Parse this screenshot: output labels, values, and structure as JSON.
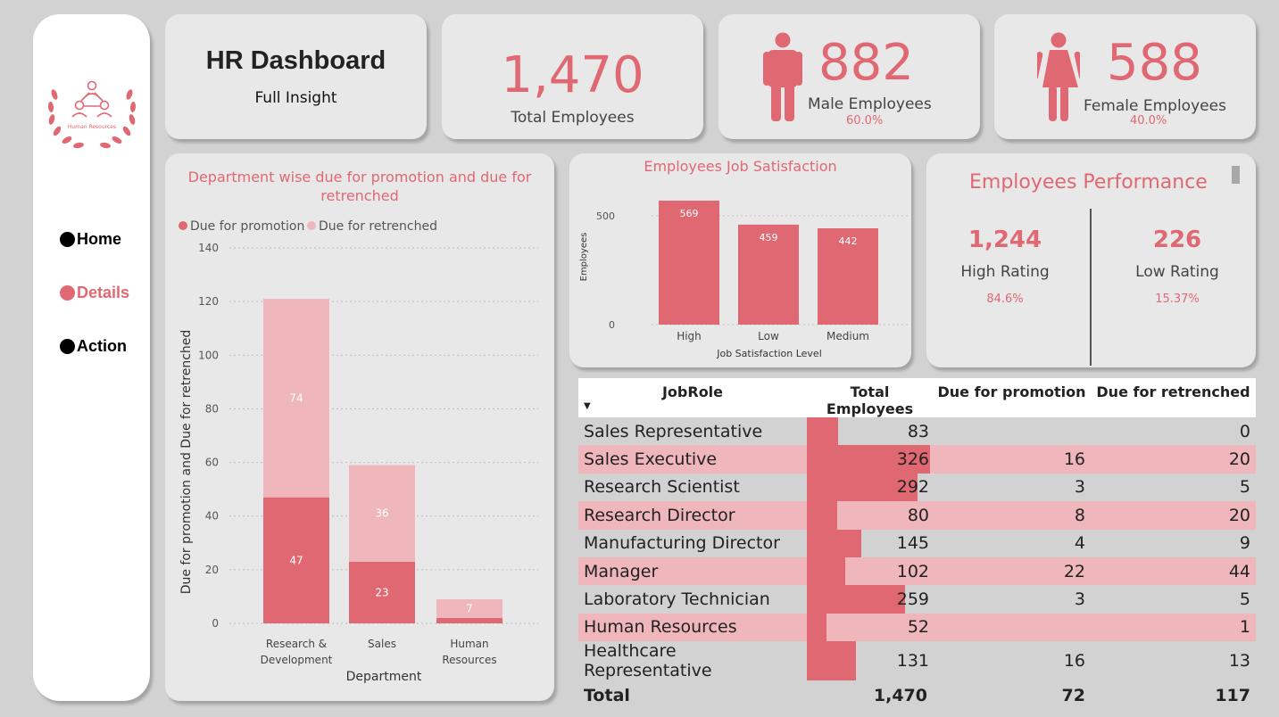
{
  "sidebar": {
    "logo_text": "Human Resources",
    "nav": [
      {
        "label": "Home",
        "color": "#000000"
      },
      {
        "label": "Details",
        "color": "#e06872"
      },
      {
        "label": "Action",
        "color": "#000000"
      }
    ]
  },
  "header": {
    "title": "HR Dashboard",
    "subtitle": "Full Insight"
  },
  "kpis": {
    "total": {
      "value": "1,470",
      "label": "Total Employees"
    },
    "male": {
      "value": "882",
      "label": "Male Employees",
      "pct": "60.0%"
    },
    "female": {
      "value": "588",
      "label": "Female Employees",
      "pct": "40.0%"
    }
  },
  "colors": {
    "accent": "#e06872",
    "light_accent": "#efb6bb",
    "card": "#e8e8e8",
    "background": "#d2d2d2"
  },
  "dept_chart": {
    "title_line1": "Department wise due for promotion and due for",
    "title_line2": "retrenched",
    "legend": [
      "Due for promotion",
      "Due for retrenched"
    ],
    "ylabel": "Due for promotion and Due for retrenched",
    "xlabel": "Department",
    "yticks": [
      "0",
      "20",
      "40",
      "60",
      "80",
      "100",
      "120",
      "140"
    ],
    "cat_lines": [
      [
        "Research &",
        "Development"
      ],
      [
        "Sales",
        ""
      ],
      [
        "Human",
        "Resources"
      ]
    ]
  },
  "satisfaction_chart": {
    "title": "Employees Job Satisfaction",
    "ylabel": "Employees",
    "xlabel": "Job Satisfaction Level",
    "yticks": [
      "0",
      "500"
    ]
  },
  "chart_data": [
    {
      "type": "bar",
      "stacked": true,
      "title": "Department wise due for promotion and due for retrenched",
      "xlabel": "Department",
      "ylabel": "Due for promotion and Due for retrenched",
      "categories": [
        "Research & Development",
        "Sales",
        "Human Resources"
      ],
      "series": [
        {
          "name": "Due for promotion",
          "values": [
            47,
            23,
            2
          ],
          "labels": [
            "47",
            "23",
            ""
          ],
          "color": "#e06872"
        },
        {
          "name": "Due for retrenched",
          "values": [
            74,
            36,
            7
          ],
          "labels": [
            "74",
            "36",
            "7"
          ],
          "color": "#efb6bb"
        }
      ],
      "ylim": [
        0,
        140
      ],
      "grid": true,
      "legend_position": "top-left"
    },
    {
      "type": "bar",
      "title": "Employees Job Satisfaction",
      "xlabel": "Job Satisfaction Level",
      "ylabel": "Employees",
      "categories": [
        "High",
        "Low",
        "Medium"
      ],
      "values": [
        569,
        459,
        442
      ],
      "labels": [
        "569",
        "459",
        "442"
      ],
      "ylim": [
        0,
        700
      ],
      "grid": true,
      "color": "#e06872"
    }
  ],
  "performance": {
    "title": "Employees Performance",
    "high": {
      "value": "1,244",
      "label": "High Rating",
      "pct": "84.6%"
    },
    "low": {
      "value": "226",
      "label": "Low Rating",
      "pct": "15.37%"
    }
  },
  "table": {
    "headers": [
      "JobRole",
      "Total Employees",
      "Due for promotion",
      "Due for retrenched"
    ],
    "sort_icon": "sort-desc-icon",
    "rows": [
      {
        "role": "Sales Representative",
        "total": "83",
        "total_num": 83,
        "promo": "",
        "retr": "0"
      },
      {
        "role": "Sales Executive",
        "total": "326",
        "total_num": 326,
        "promo": "16",
        "retr": "20"
      },
      {
        "role": "Research Scientist",
        "total": "292",
        "total_num": 292,
        "promo": "3",
        "retr": "5"
      },
      {
        "role": "Research Director",
        "total": "80",
        "total_num": 80,
        "promo": "8",
        "retr": "20"
      },
      {
        "role": "Manufacturing Director",
        "total": "145",
        "total_num": 145,
        "promo": "4",
        "retr": "9"
      },
      {
        "role": "Manager",
        "total": "102",
        "total_num": 102,
        "promo": "22",
        "retr": "44"
      },
      {
        "role": "Laboratory Technician",
        "total": "259",
        "total_num": 259,
        "promo": "3",
        "retr": "5"
      },
      {
        "role": "Human Resources",
        "total": "52",
        "total_num": 52,
        "promo": "",
        "retr": "1"
      },
      {
        "role": "Healthcare Representative",
        "total": "131",
        "total_num": 131,
        "promo": "16",
        "retr": "13"
      }
    ],
    "total": {
      "label": "Total",
      "total": "1,470",
      "promo": "72",
      "retr": "117"
    }
  }
}
